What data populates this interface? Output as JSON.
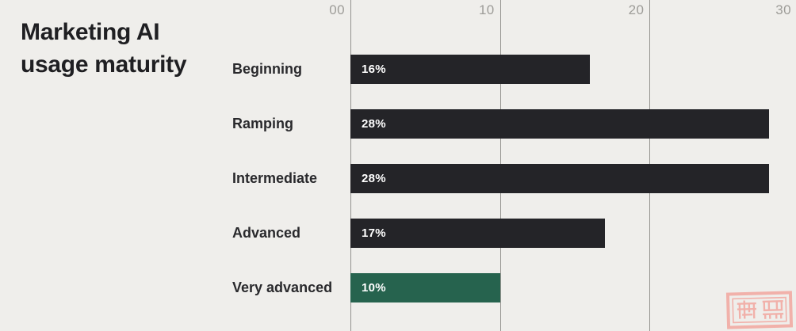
{
  "title": {
    "line1": "Marketing AI",
    "line2": "usage maturity"
  },
  "chart_data": {
    "type": "bar",
    "orientation": "horizontal",
    "title": "Marketing AI usage maturity",
    "categories": [
      "Beginning",
      "Ramping",
      "Intermediate",
      "Advanced",
      "Very advanced"
    ],
    "values": [
      16,
      28,
      28,
      17,
      10
    ],
    "value_labels": [
      "16%",
      "28%",
      "28%",
      "17%",
      "10%"
    ],
    "x_axis": {
      "position": "top",
      "ticks": [
        "00",
        "10",
        "20",
        "30"
      ],
      "tick_values": [
        0,
        10,
        20,
        30
      ],
      "max": 30,
      "gridlines": true
    },
    "legend": "none",
    "bar_color": "#242428",
    "highlight": {
      "index": 4,
      "color": "#26634E"
    },
    "value_label_color": "#FFFFFF"
  },
  "colors": {
    "background": "#EFEEEB",
    "gridline": "#94938F",
    "tick_label": "#9D9C98",
    "title_text": "#1F1F22",
    "category_label": "#29292C",
    "watermark_pink": "#F2ABA4"
  },
  "watermark": {
    "kind": "seal-stamp",
    "color": "#F2ABA4"
  }
}
